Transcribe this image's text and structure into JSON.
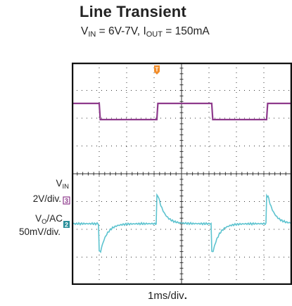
{
  "header": {
    "title": "Line Transient",
    "sub_vin_v": "V",
    "sub_vin_s": "IN",
    "sub_vin_eq": " = 6V-7V, ",
    "sub_iout_i": "I",
    "sub_iout_s": "OUT",
    "sub_iout_eq": " = 150mA"
  },
  "labels": {
    "vin_v": "V",
    "vin_s": "IN",
    "vin_scale": "2V/div.",
    "vin_marker": "3",
    "vo_v": "V",
    "vo_s": "O",
    "vo_ac": "/AC",
    "vo_scale": "50mV/div.",
    "vo_marker": "2",
    "trigger_marker": "T",
    "xlabel": "1ms/div",
    "xlabel_dot": "."
  },
  "chart_data": {
    "type": "line",
    "title": "Line Transient",
    "subtitle": "VIN = 6V-7V, IOUT = 150mA",
    "xlabel": "1ms/div",
    "x_unit": "ms",
    "x_range": [
      0,
      8.1
    ],
    "grid": true,
    "grid_divisions": {
      "x": 8,
      "y": 8
    },
    "series": [
      {
        "name": "VIN",
        "scale": "2V/div.",
        "color": "#8e3a8c",
        "levels_V": {
          "low": 6,
          "high": 7
        },
        "rising_edges_ms": [
          3.1,
          7.1
        ],
        "falling_edges_ms": [
          1.0,
          5.1
        ]
      },
      {
        "name": "VO/AC",
        "scale": "50mV/div.",
        "color": "#5cc3cf",
        "rising_spike_ms": [
          3.1,
          7.1
        ],
        "falling_spike_ms": [
          1.0,
          5.1
        ],
        "spike_amplitude_mV": 50
      }
    ]
  },
  "colors": {
    "vin_trace": "#8e3a8c",
    "vo_trace": "#5cc3cf",
    "grid": "#333333",
    "frame": "#111111"
  }
}
